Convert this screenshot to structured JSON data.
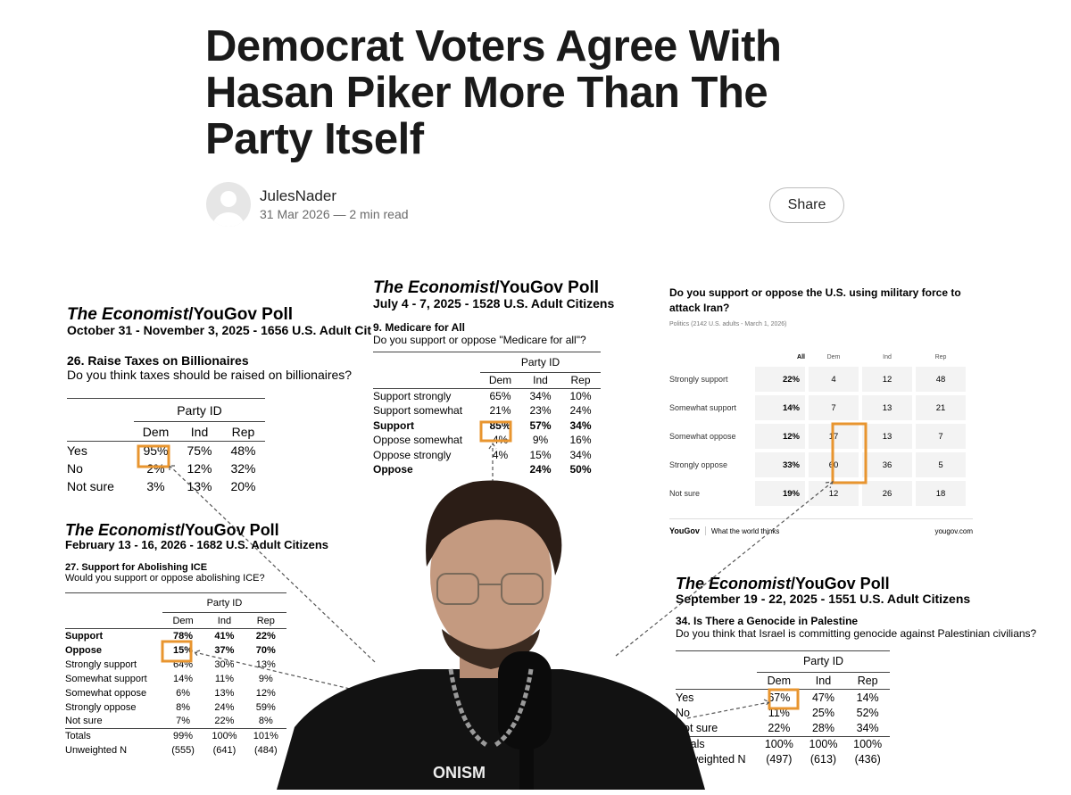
{
  "header": {
    "title": "Democrat Voters Agree With Hasan Piker More Than The Party Itself",
    "author": "JulesNader",
    "meta": "31 Mar 2026 — 2 min read",
    "share": "Share"
  },
  "polls": [
    {
      "style": "economist",
      "brand": "The Economist",
      "source": "/YouGov Poll",
      "dates": "October 31 - November 3, 2025 - 1656 U.S. Adult Cit",
      "question_title": "26. Raise Taxes on Billionaires",
      "question": "Do you think taxes should be raised on billionaires?",
      "group": "Party ID",
      "columns": [
        "Dem",
        "Ind",
        "Rep"
      ],
      "rows": [
        {
          "label": "Yes",
          "cells": [
            "95%",
            "75%",
            "48%"
          ]
        },
        {
          "label": "No",
          "cells": [
            "2%",
            "12%",
            "32%"
          ]
        },
        {
          "label": "Not sure",
          "cells": [
            "3%",
            "13%",
            "20%"
          ]
        }
      ]
    },
    {
      "style": "economist",
      "brand": "The Economist",
      "source": "/YouGov Poll",
      "dates": "July 4 - 7, 2025 - 1528 U.S. Adult Citizens",
      "question_title": "9. Medicare for All",
      "question": "Do you support or oppose \"Medicare for all\"?",
      "group": "Party ID",
      "columns": [
        "Dem",
        "Ind",
        "Rep"
      ],
      "rows": [
        {
          "label": "Support strongly",
          "cells": [
            "65%",
            "34%",
            "10%"
          ]
        },
        {
          "label": "Support somewhat",
          "cells": [
            "21%",
            "23%",
            "24%"
          ]
        },
        {
          "label": "Support",
          "cells": [
            "85%",
            "57%",
            "34%"
          ],
          "bold": true
        },
        {
          "label": "Oppose somewhat",
          "cells": [
            "4%",
            "9%",
            "16%"
          ]
        },
        {
          "label": "Oppose strongly",
          "cells": [
            "4%",
            "15%",
            "34%"
          ]
        },
        {
          "label": "Oppose",
          "cells": [
            null,
            "24%",
            "50%"
          ],
          "bold": true
        }
      ]
    },
    {
      "style": "yougov",
      "question": "Do you support or oppose the U.S. using military force to attack Iran?",
      "subtitle": "Politics (2142 U.S. adults - March 1, 2026)",
      "columns": [
        "All",
        "Dem",
        "Ind",
        "Rep"
      ],
      "rows": [
        {
          "label": "Strongly support",
          "cells": [
            "22%",
            "4",
            "12",
            "48"
          ]
        },
        {
          "label": "Somewhat support",
          "cells": [
            "14%",
            "7",
            "13",
            "21"
          ]
        },
        {
          "label": "Somewhat oppose",
          "cells": [
            "12%",
            "17",
            "13",
            "7"
          ]
        },
        {
          "label": "Strongly oppose",
          "cells": [
            "33%",
            "60",
            "36",
            "5"
          ]
        },
        {
          "label": "Not sure",
          "cells": [
            "19%",
            "12",
            "26",
            "18"
          ]
        }
      ],
      "footer_brand": "YouGov",
      "footer_tagline": "What the world thinks",
      "footer_url": "yougov.com"
    },
    {
      "style": "economist",
      "brand": "The Economist",
      "source": "/YouGov Poll",
      "dates": "February 13 - 16, 2026 - 1682 U.S. Adult Citizens",
      "question_title": "27. Support for Abolishing ICE",
      "question": "Would you support or oppose abolishing ICE?",
      "group": "Party ID",
      "columns": [
        "Dem",
        "Ind",
        "Rep"
      ],
      "rows": [
        {
          "label": "Support",
          "cells": [
            "78%",
            "41%",
            "22%"
          ],
          "bold": true
        },
        {
          "label": "Oppose",
          "cells": [
            "15%",
            "37%",
            "70%"
          ],
          "bold": true
        },
        {
          "label": "Strongly support",
          "cells": [
            "64%",
            "30%",
            "13%"
          ]
        },
        {
          "label": "Somewhat support",
          "cells": [
            "14%",
            "11%",
            "9%"
          ]
        },
        {
          "label": "Somewhat oppose",
          "cells": [
            "6%",
            "13%",
            "12%"
          ]
        },
        {
          "label": "Strongly oppose",
          "cells": [
            "8%",
            "24%",
            "59%"
          ]
        },
        {
          "label": "Not sure",
          "cells": [
            "7%",
            "22%",
            "8%"
          ]
        },
        {
          "label": "Totals",
          "cells": [
            "99%",
            "100%",
            "101%"
          ],
          "rule": true
        },
        {
          "label": "Unweighted N",
          "cells": [
            "(555)",
            "(641)",
            "(484)"
          ]
        }
      ]
    },
    {
      "style": "economist",
      "brand": "The Economist",
      "source": "/YouGov Poll",
      "dates": "September 19 - 22, 2025 - 1551 U.S. Adult Citizens",
      "question_title": "34. Is There a Genocide in Palestine",
      "question": "Do you think that Israel is committing genocide against Palestinian civilians?",
      "group": "Party ID",
      "columns": [
        "Dem",
        "Ind",
        "Rep"
      ],
      "rows": [
        {
          "label": "Yes",
          "cells": [
            "67%",
            "47%",
            "14%"
          ]
        },
        {
          "label": "No",
          "cells": [
            "11%",
            "25%",
            "52%"
          ]
        },
        {
          "label": "Not sure",
          "cells": [
            "22%",
            "28%",
            "34%"
          ]
        },
        {
          "label": "Totals",
          "cells": [
            "100%",
            "100%",
            "100%"
          ],
          "rule": true
        },
        {
          "label": "Unweighted N",
          "cells": [
            "(497)",
            "(613)",
            "(436)"
          ]
        }
      ]
    }
  ],
  "photo": {
    "shirt_text": "ONISM"
  }
}
